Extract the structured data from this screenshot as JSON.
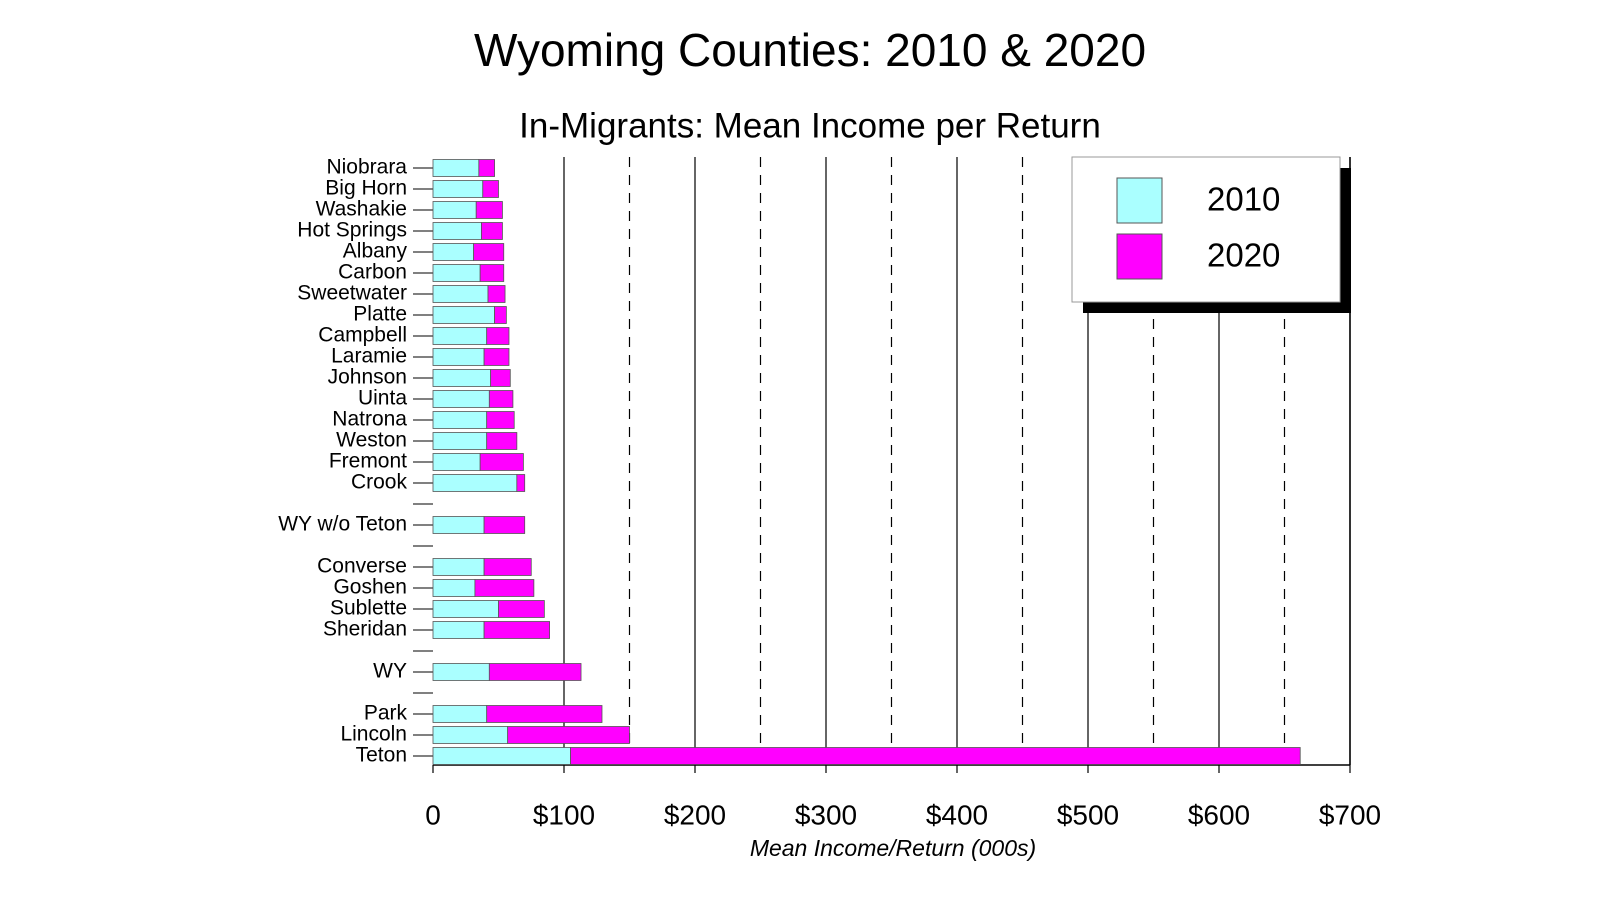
{
  "chart_data": {
    "type": "stacked-barh",
    "title": "Wyoming Counties: 2010 & 2020",
    "subtitle": "In-Migrants: Mean Income per Return",
    "xlabel": "Mean Income/Return (000s)",
    "categories": [
      "Niobrara",
      "Big Horn",
      "Washakie",
      "Hot Springs",
      "Albany",
      "Carbon",
      "Sweetwater",
      "Platte",
      "Campbell",
      "Laramie",
      "Johnson",
      "Uinta",
      "Natrona",
      "Weston",
      "Fremont",
      "Crook",
      null,
      "WY w/o Teton",
      null,
      "Converse",
      "Goshen",
      "Sublette",
      "Sheridan",
      null,
      "WY",
      null,
      "Park",
      "Lincoln",
      "Teton"
    ],
    "series": [
      {
        "name": "2010",
        "color": "#aaffff",
        "values": [
          35,
          38,
          33,
          37,
          31,
          36,
          42,
          47,
          41,
          39,
          44,
          43,
          41,
          41,
          36,
          64,
          null,
          39,
          null,
          39,
          32,
          50,
          39,
          null,
          43,
          null,
          41,
          57,
          105
        ]
      },
      {
        "name": "2020",
        "color": "#ff00ff",
        "values": [
          12,
          12,
          20,
          16,
          23,
          18,
          13,
          9,
          17,
          19,
          15,
          18,
          21,
          23,
          33,
          6,
          null,
          31,
          null,
          36,
          45,
          35,
          50,
          null,
          70,
          null,
          88,
          93,
          557
        ]
      }
    ],
    "xlim": [
      0,
      700
    ],
    "xticks": [
      0,
      {
        "value": 100,
        "label": "$100"
      },
      {
        "value": 200,
        "label": "$200"
      },
      {
        "value": 300,
        "label": "$300"
      },
      {
        "value": 400,
        "label": "$400"
      },
      {
        "value": 500,
        "label": "$500"
      },
      {
        "value": 600,
        "label": "$600"
      },
      {
        "value": 700,
        "label": "$700"
      }
    ],
    "xminor": [
      150,
      250,
      350,
      450,
      550,
      650
    ],
    "grid": true,
    "legend": "upper right"
  }
}
